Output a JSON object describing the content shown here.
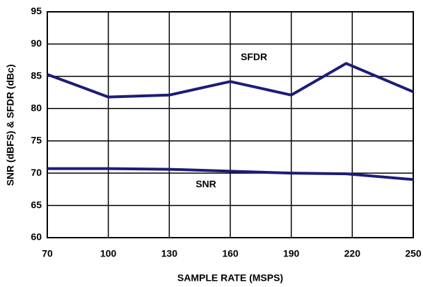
{
  "chart_data": {
    "type": "line",
    "x_label": "SAMPLE RATE (MSPS)",
    "y_label": "SNR (dBFS) & SFDR (dBc)",
    "x": [
      70,
      100,
      130,
      160,
      190,
      217,
      250
    ],
    "series": [
      {
        "name": "SFDR",
        "color": "#1c1c78",
        "values": [
          85.3,
          81.8,
          82.1,
          84.2,
          82.1,
          87.0,
          82.6
        ]
      },
      {
        "name": "SNR",
        "color": "#1c1c78",
        "values": [
          70.7,
          70.7,
          70.6,
          70.3,
          70.0,
          69.9,
          69.0
        ]
      }
    ],
    "xlim": [
      70,
      250
    ],
    "xticks": [
      70,
      100,
      130,
      160,
      190,
      220,
      250
    ],
    "ylim": [
      60,
      95
    ],
    "yticks": [
      60,
      65,
      70,
      75,
      80,
      85,
      90,
      95
    ],
    "grid": true
  }
}
